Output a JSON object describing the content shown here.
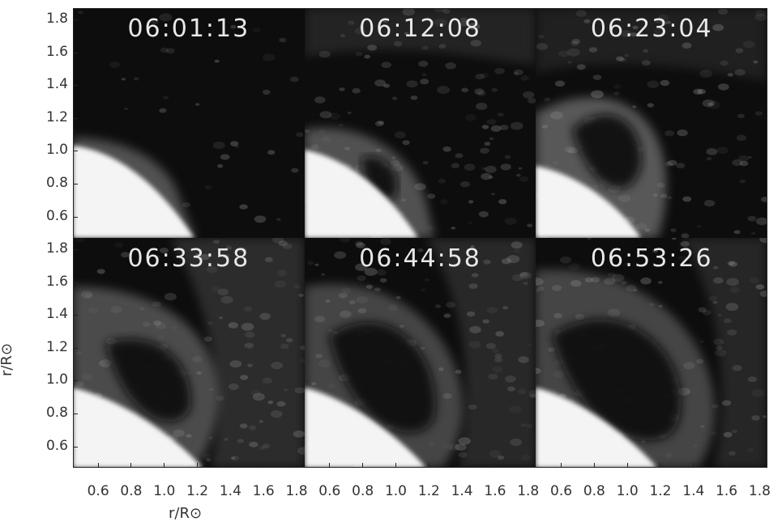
{
  "panels": [
    {
      "timestamp": "06:01:13"
    },
    {
      "timestamp": "06:12:08"
    },
    {
      "timestamp": "06:23:04"
    },
    {
      "timestamp": "06:33:58"
    },
    {
      "timestamp": "06:44:58"
    },
    {
      "timestamp": "06:53:26"
    }
  ],
  "y_axis": {
    "title": "r/R⊙",
    "top_ticks": [
      "1.8",
      "1.6",
      "1.4",
      "1.2",
      "1.0",
      "0.8",
      "0.6"
    ],
    "bottom_ticks": [
      "1.8",
      "1.6",
      "1.4",
      "1.2",
      "1.0",
      "0.8",
      "0.6"
    ]
  },
  "x_axis": {
    "title": "r/R⊙",
    "ticks": [
      "0.6",
      "0.8",
      "1.0",
      "1.2",
      "1.4",
      "1.6",
      "1.8"
    ],
    "tick_values": [
      0.6,
      0.8,
      1.0,
      1.2,
      1.4,
      1.6,
      1.8
    ],
    "range": [
      0.45,
      1.85
    ]
  },
  "colors": {
    "sky": "#0d0d0d",
    "disk": "#f4f4f4",
    "loop": "#8a8a8a",
    "timestamp_text": "#e8e8e8"
  }
}
